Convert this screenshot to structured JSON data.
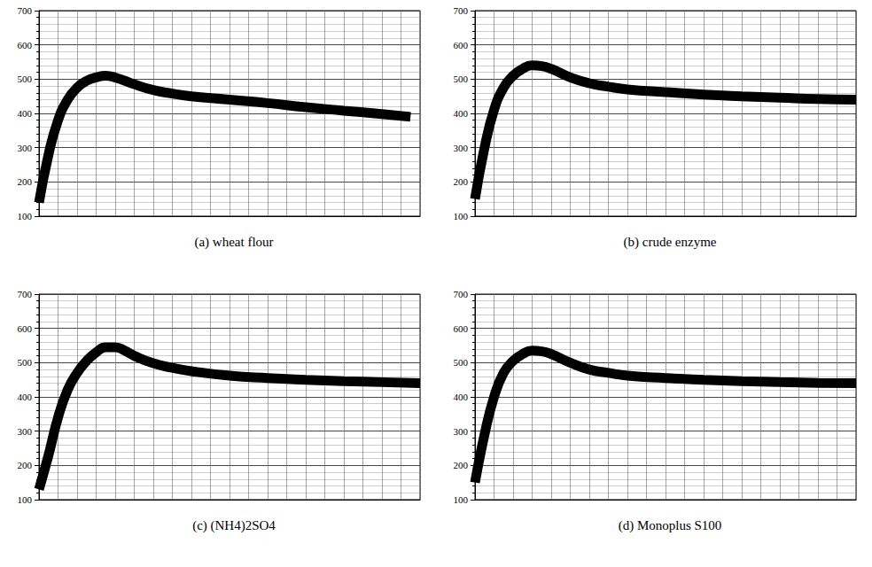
{
  "chart_data": [
    {
      "type": "line",
      "title": "(a) wheat flour",
      "color": "#000000",
      "grid": true,
      "tick_labels": "y",
      "x": [
        0,
        0.5,
        1,
        1.5,
        2,
        2.5,
        3,
        3.5,
        4,
        5,
        6,
        7,
        8,
        10,
        12,
        14,
        16,
        18,
        19.5
      ],
      "values": [
        140,
        280,
        380,
        440,
        475,
        495,
        505,
        510,
        505,
        485,
        468,
        458,
        450,
        440,
        430,
        418,
        408,
        398,
        390
      ],
      "xlim": [
        0,
        20
      ],
      "xticks": [
        0,
        1,
        2,
        3,
        4,
        5,
        6,
        7,
        8,
        9,
        10,
        11,
        12,
        13,
        14,
        15,
        16,
        17,
        18,
        19,
        20
      ],
      "ylim": [
        100,
        700
      ],
      "yticks": [
        100,
        200,
        300,
        400,
        500,
        600,
        700
      ]
    },
    {
      "type": "line",
      "title": "(b) crude enzyme",
      "color": "#000000",
      "grid": true,
      "tick_labels": "y",
      "x": [
        0,
        0.5,
        1,
        1.5,
        2,
        2.5,
        3,
        3.5,
        4,
        5,
        6,
        7,
        8,
        10,
        12,
        14,
        16,
        18,
        20
      ],
      "values": [
        150,
        300,
        410,
        475,
        510,
        530,
        540,
        538,
        530,
        505,
        488,
        478,
        470,
        462,
        455,
        450,
        446,
        442,
        440
      ],
      "xlim": [
        0,
        20
      ],
      "xticks": [
        0,
        1,
        2,
        3,
        4,
        5,
        6,
        7,
        8,
        9,
        10,
        11,
        12,
        13,
        14,
        15,
        16,
        17,
        18,
        19,
        20
      ],
      "ylim": [
        100,
        700
      ],
      "yticks": [
        100,
        200,
        300,
        400,
        500,
        600,
        700
      ]
    },
    {
      "type": "line",
      "title": "(c) (NH4)2SO4",
      "color": "#000000",
      "grid": true,
      "tick_labels": "y",
      "x": [
        0,
        0.5,
        1,
        1.5,
        2,
        2.5,
        3,
        3.5,
        4,
        4.5,
        5,
        6,
        7,
        8,
        10,
        12,
        14,
        16,
        18,
        20
      ],
      "values": [
        130,
        230,
        340,
        420,
        470,
        505,
        530,
        545,
        545,
        535,
        520,
        498,
        485,
        475,
        462,
        455,
        450,
        446,
        443,
        440
      ],
      "xlim": [
        0,
        20
      ],
      "xticks": [
        0,
        1,
        2,
        3,
        4,
        5,
        6,
        7,
        8,
        9,
        10,
        11,
        12,
        13,
        14,
        15,
        16,
        17,
        18,
        19,
        20
      ],
      "ylim": [
        100,
        700
      ],
      "yticks": [
        100,
        200,
        300,
        400,
        500,
        600,
        700
      ]
    },
    {
      "type": "line",
      "title": "(d) Monoplus S100",
      "color": "#000000",
      "grid": true,
      "tick_labels": "y",
      "x": [
        0,
        0.5,
        1,
        1.5,
        2,
        2.5,
        3,
        3.5,
        4,
        5,
        6,
        7,
        8,
        10,
        12,
        14,
        16,
        18,
        20
      ],
      "values": [
        150,
        290,
        400,
        470,
        505,
        525,
        535,
        533,
        525,
        500,
        480,
        470,
        462,
        455,
        450,
        446,
        443,
        441,
        440
      ],
      "xlim": [
        0,
        20
      ],
      "xticks": [
        0,
        1,
        2,
        3,
        4,
        5,
        6,
        7,
        8,
        9,
        10,
        11,
        12,
        13,
        14,
        15,
        16,
        17,
        18,
        19,
        20
      ],
      "ylim": [
        100,
        700
      ],
      "yticks": [
        100,
        200,
        300,
        400,
        500,
        600,
        700
      ]
    }
  ]
}
